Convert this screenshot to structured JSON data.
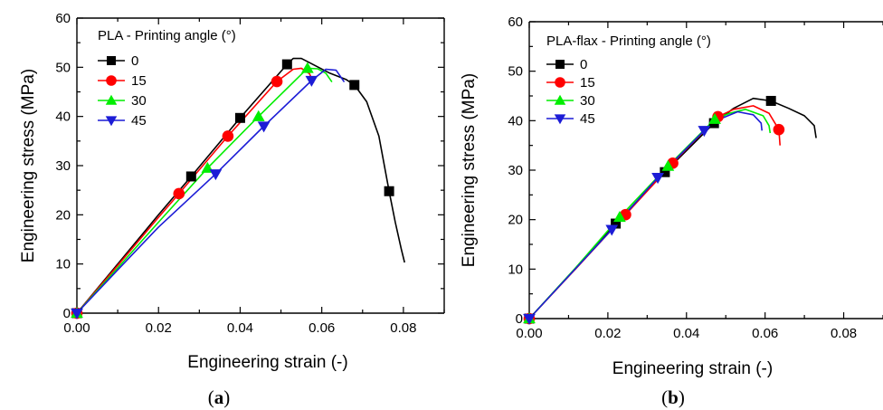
{
  "chart_data": [
    {
      "type": "line",
      "panel_label_open": "(",
      "panel_label_letter": "a",
      "panel_label_close": ")",
      "xlabel": "Engineering strain (-)",
      "ylabel": "Engineering stress (MPa)",
      "xlim": [
        0,
        0.09
      ],
      "ylim": [
        0,
        60
      ],
      "xticks": [
        0.0,
        0.02,
        0.04,
        0.06,
        0.08
      ],
      "xtick_labels": [
        "0.00",
        "0.02",
        "0.04",
        "0.06",
        "0.08"
      ],
      "yticks": [
        0,
        10,
        20,
        30,
        40,
        50,
        60
      ],
      "ytick_labels": [
        "0",
        "10",
        "20",
        "30",
        "40",
        "50",
        "60"
      ],
      "grid": false,
      "legend_title": "PLA - Printing angle (°)",
      "legend_position": "top-left",
      "series": [
        {
          "name": "0",
          "color": "#000000",
          "marker": "square",
          "x": [
            0.0,
            0.01,
            0.02,
            0.028,
            0.04,
            0.0515,
            0.053,
            0.055,
            0.058,
            0.062,
            0.066,
            0.068,
            0.071,
            0.074,
            0.0765,
            0.078,
            0.0795,
            0.0803
          ],
          "y": [
            0.0,
            10.0,
            20.0,
            27.8,
            39.7,
            50.6,
            51.8,
            51.8,
            50.5,
            48.8,
            47.5,
            46.4,
            43.0,
            36.0,
            24.8,
            18.5,
            13.0,
            10.3
          ],
          "markers_x": [
            0.0,
            0.028,
            0.04,
            0.0515,
            0.068,
            0.0765
          ],
          "markers_y": [
            0.0,
            27.8,
            39.7,
            50.6,
            46.4,
            24.8
          ]
        },
        {
          "name": "15",
          "color": "#ff0000",
          "marker": "circle",
          "x": [
            0.0,
            0.01,
            0.02,
            0.025,
            0.037,
            0.049,
            0.053,
            0.055,
            0.057,
            0.058
          ],
          "y": [
            0.0,
            9.7,
            19.5,
            24.3,
            36.0,
            47.1,
            49.6,
            49.8,
            48.7,
            46.8
          ],
          "markers_x": [
            0.0,
            0.025,
            0.037,
            0.049
          ],
          "markers_y": [
            0.0,
            24.3,
            36.0,
            47.1
          ]
        },
        {
          "name": "30",
          "color": "#00ee00",
          "marker": "triangle-up",
          "x": [
            0.0,
            0.01,
            0.02,
            0.032,
            0.0445,
            0.0565,
            0.059,
            0.061,
            0.0625
          ],
          "y": [
            0.0,
            9.2,
            18.5,
            29.5,
            40.0,
            49.8,
            49.7,
            48.8,
            47.0
          ],
          "markers_x": [
            0.0,
            0.032,
            0.0445,
            0.0565
          ],
          "markers_y": [
            0.0,
            29.5,
            40.0,
            49.8
          ]
        },
        {
          "name": "45",
          "color": "#1c1cd6",
          "marker": "triangle-down",
          "x": [
            0.0,
            0.01,
            0.02,
            0.034,
            0.0458,
            0.0575,
            0.061,
            0.0635,
            0.0655
          ],
          "y": [
            0.0,
            8.8,
            17.5,
            28.3,
            38.0,
            47.3,
            49.6,
            49.4,
            47.0
          ],
          "markers_x": [
            0.0,
            0.034,
            0.0458,
            0.0575
          ],
          "markers_y": [
            0.0,
            28.3,
            38.0,
            47.3
          ]
        }
      ]
    },
    {
      "type": "line",
      "panel_label_open": "(",
      "panel_label_letter": "b",
      "panel_label_close": ")",
      "xlabel": "Engineering strain (-)",
      "ylabel": "Engineering stress (MPa)",
      "xlim": [
        0,
        0.09
      ],
      "ylim": [
        0,
        60
      ],
      "xticks": [
        0.0,
        0.02,
        0.04,
        0.06,
        0.08
      ],
      "xtick_labels": [
        "0.00",
        "0.02",
        "0.04",
        "0.06",
        "0.08"
      ],
      "yticks": [
        0,
        10,
        20,
        30,
        40,
        50,
        60
      ],
      "ytick_labels": [
        "0",
        "10",
        "20",
        "30",
        "40",
        "50",
        "60"
      ],
      "grid": false,
      "legend_title": "PLA-flax - Printing angle (°)",
      "legend_position": "top-left",
      "series": [
        {
          "name": "0",
          "color": "#000000",
          "marker": "square",
          "x": [
            0.0,
            0.011,
            0.022,
            0.0345,
            0.047,
            0.052,
            0.057,
            0.0615,
            0.066,
            0.07,
            0.0725,
            0.073
          ],
          "y": [
            0.0,
            9.5,
            19.2,
            29.6,
            39.5,
            42.5,
            44.5,
            44.0,
            42.5,
            41.0,
            39.0,
            36.5
          ],
          "markers_x": [
            0.0,
            0.022,
            0.0345,
            0.047,
            0.0615
          ],
          "markers_y": [
            0.0,
            19.2,
            29.6,
            39.5,
            44.0
          ]
        },
        {
          "name": "15",
          "color": "#ff0000",
          "marker": "circle",
          "x": [
            0.0,
            0.012,
            0.0245,
            0.0365,
            0.048,
            0.052,
            0.057,
            0.061,
            0.0635,
            0.0638
          ],
          "y": [
            0.0,
            10.2,
            21.0,
            31.4,
            40.8,
            42.3,
            43.0,
            41.5,
            38.2,
            35.0
          ],
          "markers_x": [
            0.0,
            0.0245,
            0.0365,
            0.048,
            0.0635
          ],
          "markers_y": [
            0.0,
            21.0,
            31.4,
            40.8,
            38.2
          ]
        },
        {
          "name": "30",
          "color": "#00ee00",
          "marker": "triangle-up",
          "x": [
            0.0,
            0.0115,
            0.023,
            0.0353,
            0.0472,
            0.051,
            0.055,
            0.0595,
            0.061,
            0.0613
          ],
          "y": [
            0.0,
            10.0,
            20.5,
            30.8,
            40.3,
            41.5,
            42.3,
            41.0,
            39.0,
            37.5
          ],
          "markers_x": [
            0.0,
            0.023,
            0.0353,
            0.0472
          ],
          "markers_y": [
            0.0,
            20.5,
            30.8,
            40.3
          ]
        },
        {
          "name": "45",
          "color": "#1c1cd6",
          "marker": "triangle-down",
          "x": [
            0.0,
            0.0105,
            0.021,
            0.0327,
            0.0445,
            0.049,
            0.053,
            0.057,
            0.059,
            0.0592
          ],
          "y": [
            0.0,
            9.0,
            18.0,
            28.5,
            38.0,
            40.5,
            41.8,
            41.2,
            39.5,
            38.0
          ],
          "markers_x": [
            0.0,
            0.021,
            0.0327,
            0.0445
          ],
          "markers_y": [
            0.0,
            18.0,
            28.5,
            38.0
          ]
        }
      ]
    }
  ]
}
